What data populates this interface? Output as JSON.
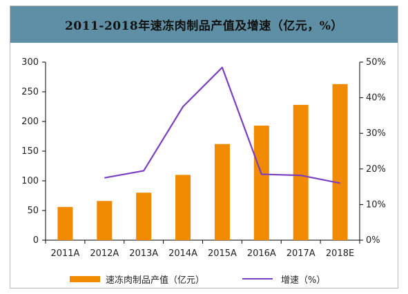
{
  "chart_data": {
    "type": "bar",
    "title": "2011-2018年速冻肉制品产值及增速（亿元，%）",
    "categories": [
      "2011A",
      "2012A",
      "2013A",
      "2014A",
      "2015A",
      "2016A",
      "2017A",
      "2018E"
    ],
    "series": [
      {
        "name": "速冻肉制品产值（亿元）",
        "type": "bar",
        "axis": "left",
        "color": "#f08a00",
        "values": [
          56,
          66,
          80,
          110,
          162,
          193,
          228,
          263
        ]
      },
      {
        "name": "增速（%）",
        "type": "line",
        "axis": "right",
        "color": "#7a3fc0",
        "values": [
          null,
          17.5,
          19.5,
          37.5,
          48.5,
          18.5,
          18.2,
          16
        ]
      }
    ],
    "left_axis": {
      "min": 0,
      "max": 300,
      "ticks": [
        "0",
        "50",
        "100",
        "150",
        "200",
        "250",
        "300"
      ]
    },
    "right_axis": {
      "min": 0,
      "max": 50,
      "ticks": [
        "0%",
        "10%",
        "20%",
        "30%",
        "40%",
        "50%"
      ]
    },
    "grid": false,
    "legend_position": "bottom"
  }
}
